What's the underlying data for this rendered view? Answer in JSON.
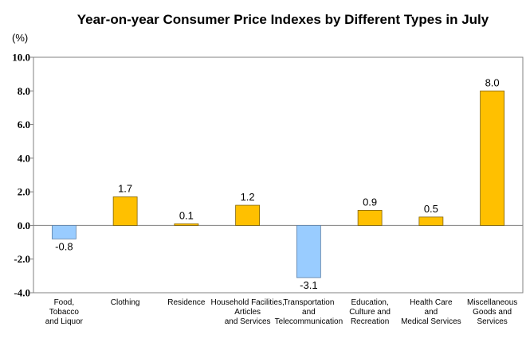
{
  "chart_data": {
    "type": "bar",
    "title": "Year-on-year Consumer Price Indexes by Different Types in July",
    "unit_label": "(%)",
    "ylim": [
      -4.0,
      10.0
    ],
    "yticks": [
      "10.0",
      "8.0",
      "6.0",
      "4.0",
      "2.0",
      "0.0",
      "-2.0",
      "-4.0"
    ],
    "ytick_values": [
      10,
      8,
      6,
      4,
      2,
      0,
      -2,
      -4
    ],
    "grid": false,
    "legend": "none",
    "categories": [
      [
        "Food,",
        "Tobacco",
        "and Liquor"
      ],
      [
        "Clothing"
      ],
      [
        "Residence"
      ],
      [
        "Household Facilities,",
        "Articles",
        "and Services"
      ],
      [
        "Transportation",
        "and",
        "Telecommunication"
      ],
      [
        "Education,",
        "Culture and",
        "Recreation"
      ],
      [
        "Health Care",
        "and",
        "Medical Services"
      ],
      [
        "Miscellaneous",
        "Goods and",
        "Services"
      ]
    ],
    "values": [
      -0.8,
      1.7,
      0.1,
      1.2,
      -3.1,
      0.9,
      0.5,
      8.0
    ],
    "value_labels": [
      "-0.8",
      "1.7",
      "0.1",
      "1.2",
      "-3.1",
      "0.9",
      "0.5",
      "8.0"
    ],
    "colors": {
      "positive": "#FFC000",
      "negative": "#99CCFF",
      "bar_border": "#7F6000",
      "negative_border": "#5B7FA6",
      "axis": "#808080"
    }
  }
}
